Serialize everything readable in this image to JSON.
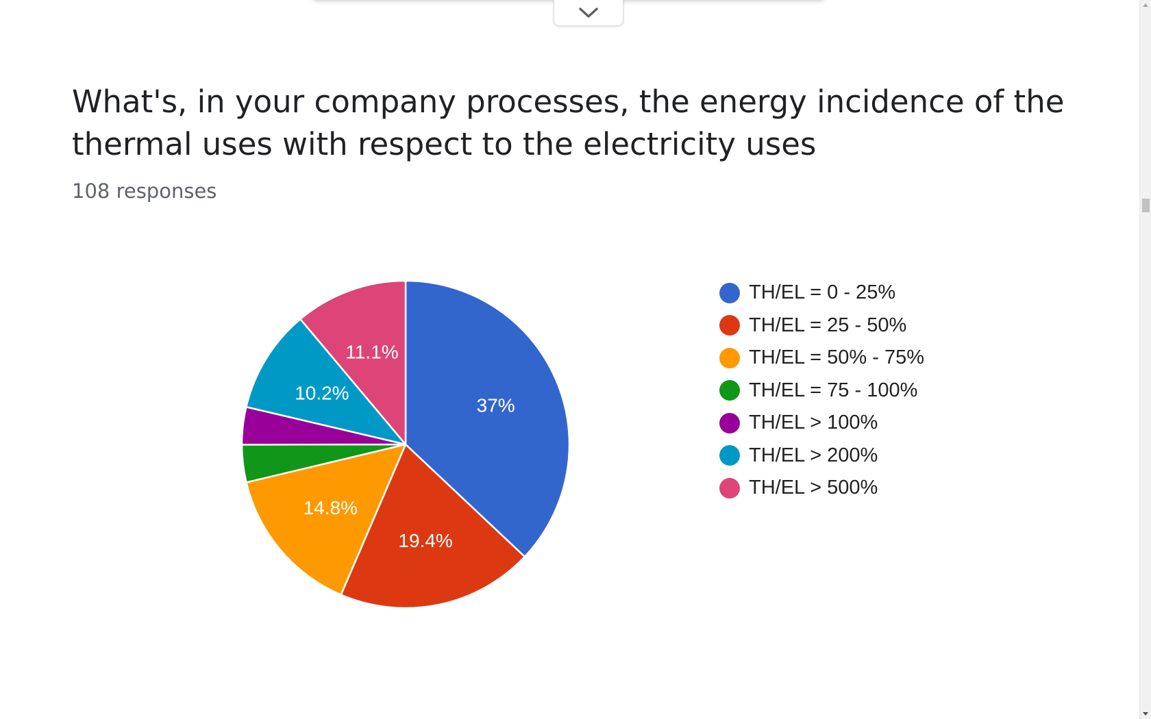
{
  "question": {
    "title": "What's, in your company processes, the energy incidence of the thermal uses with respect to the electricity uses",
    "responses": "108 responses"
  },
  "icons": {
    "collapse": "chevron-down-icon"
  },
  "chart_data": {
    "type": "pie",
    "total_responses": 108,
    "start": "top",
    "direction": "clockwise",
    "slices": [
      {
        "name": "TH/EL = 0 - 25%",
        "value": 37.0,
        "label": "37%",
        "color": "#3366cc"
      },
      {
        "name": "TH/EL = 25 - 50%",
        "value": 19.4,
        "label": "19.4%",
        "color": "#dc3912"
      },
      {
        "name": "TH/EL = 50% - 75%",
        "value": 14.8,
        "label": "14.8%",
        "color": "#ff9900"
      },
      {
        "name": "TH/EL = 75 - 100%",
        "value": 3.7,
        "label": "",
        "color": "#109618"
      },
      {
        "name": "TH/EL > 100%",
        "value": 3.7,
        "label": "",
        "color": "#990099"
      },
      {
        "name": "TH/EL > 200%",
        "value": 10.2,
        "label": "10.2%",
        "color": "#0099c6"
      },
      {
        "name": "TH/EL > 500%",
        "value": 11.1,
        "label": "11.1%",
        "color": "#dd4477"
      }
    ],
    "legend_order": [
      0,
      1,
      2,
      3,
      4,
      5,
      6
    ],
    "legend_position": "right"
  }
}
